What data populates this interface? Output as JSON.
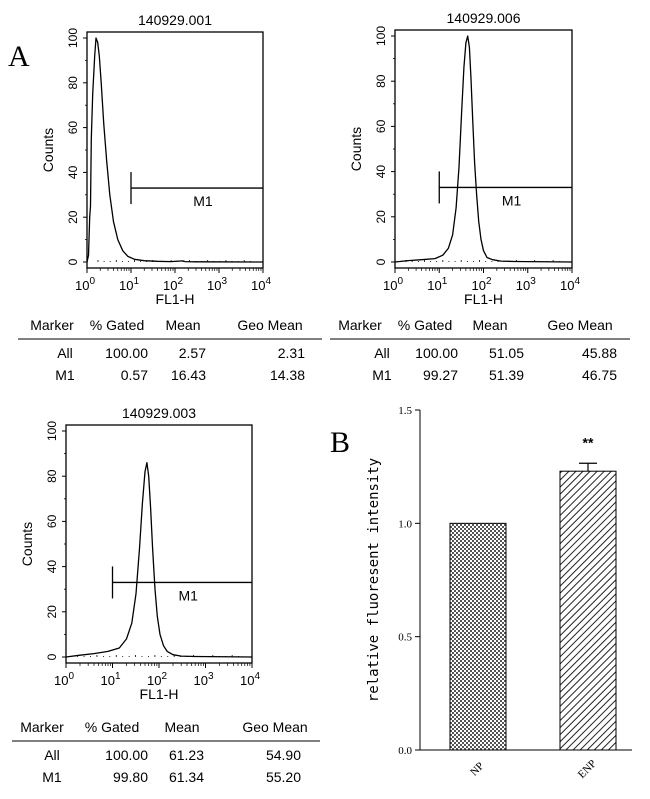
{
  "panel_labels": {
    "a": "A",
    "b": "B"
  },
  "chart_data": [
    {
      "type": "histogram",
      "title": "140929.001",
      "xlabel": "FL1-H",
      "ylabel": "Counts",
      "xscale": "log",
      "xlim": [
        1,
        10000
      ],
      "ylim": [
        0,
        100
      ],
      "xticks": [
        {
          "base": "10",
          "exp": "0"
        },
        {
          "base": "10",
          "exp": "1"
        },
        {
          "base": "10",
          "exp": "2"
        },
        {
          "base": "10",
          "exp": "3"
        },
        {
          "base": "10",
          "exp": "4"
        }
      ],
      "yticks": [
        "0",
        "20",
        "40",
        "60",
        "80",
        "100"
      ],
      "marker": {
        "label": "M1",
        "start": 10,
        "end": 10000,
        "level": 33
      },
      "histogram": [
        [
          1,
          0
        ],
        [
          1.08,
          3
        ],
        [
          1.15,
          20
        ],
        [
          1.2,
          25
        ],
        [
          1.25,
          55
        ],
        [
          1.35,
          75
        ],
        [
          1.5,
          92
        ],
        [
          1.6,
          100
        ],
        [
          1.75,
          98
        ],
        [
          1.9,
          92
        ],
        [
          2.1,
          80
        ],
        [
          2.4,
          62
        ],
        [
          2.8,
          45
        ],
        [
          3.3,
          30
        ],
        [
          4,
          18
        ],
        [
          5,
          10
        ],
        [
          6.5,
          5
        ],
        [
          8.5,
          2.5
        ],
        [
          12,
          1.2
        ],
        [
          20,
          0.6
        ],
        [
          40,
          0.3
        ],
        [
          80,
          0.2
        ],
        [
          150,
          0.5
        ],
        [
          170,
          0.2
        ],
        [
          300,
          0.1
        ],
        [
          10000,
          0
        ]
      ],
      "stats": {
        "headers": [
          "Marker",
          "% Gated",
          "Mean",
          "Geo Mean"
        ],
        "rows": [
          [
            "All",
            "100.00",
            "2.57",
            "2.31"
          ],
          [
            "M1",
            "0.57",
            "16.43",
            "14.38"
          ]
        ]
      }
    },
    {
      "type": "histogram",
      "title": "140929.006",
      "xlabel": "FL1-H",
      "ylabel": "Counts",
      "xscale": "log",
      "xlim": [
        1,
        10000
      ],
      "ylim": [
        0,
        100
      ],
      "xticks": [
        {
          "base": "10",
          "exp": "0"
        },
        {
          "base": "10",
          "exp": "1"
        },
        {
          "base": "10",
          "exp": "2"
        },
        {
          "base": "10",
          "exp": "3"
        },
        {
          "base": "10",
          "exp": "4"
        }
      ],
      "yticks": [
        "0",
        "20",
        "40",
        "60",
        "80",
        "100"
      ],
      "marker": {
        "label": "M1",
        "start": 10,
        "end": 10000,
        "level": 33
      },
      "histogram": [
        [
          1,
          0
        ],
        [
          2,
          0.6
        ],
        [
          4,
          1
        ],
        [
          8,
          1.5
        ],
        [
          12,
          3
        ],
        [
          16,
          6
        ],
        [
          20,
          12
        ],
        [
          24,
          24
        ],
        [
          28,
          42
        ],
        [
          32,
          66
        ],
        [
          36,
          86
        ],
        [
          40,
          97
        ],
        [
          44,
          100
        ],
        [
          48,
          95
        ],
        [
          52,
          82
        ],
        [
          57,
          63
        ],
        [
          63,
          44
        ],
        [
          70,
          30
        ],
        [
          78,
          18
        ],
        [
          88,
          10
        ],
        [
          100,
          5
        ],
        [
          120,
          2
        ],
        [
          160,
          1
        ],
        [
          250,
          0.4
        ],
        [
          500,
          0.2
        ],
        [
          10000,
          0
        ]
      ],
      "stats": {
        "headers": [
          "Marker",
          "% Gated",
          "Mean",
          "Geo Mean"
        ],
        "rows": [
          [
            "All",
            "100.00",
            "51.05",
            "45.88"
          ],
          [
            "M1",
            "99.27",
            "51.39",
            "46.75"
          ]
        ]
      }
    },
    {
      "type": "histogram",
      "title": "140929.003",
      "xlabel": "FL1-H",
      "ylabel": "Counts",
      "xscale": "log",
      "xlim": [
        1,
        10000
      ],
      "ylim": [
        0,
        100
      ],
      "xticks": [
        {
          "base": "10",
          "exp": "0"
        },
        {
          "base": "10",
          "exp": "1"
        },
        {
          "base": "10",
          "exp": "2"
        },
        {
          "base": "10",
          "exp": "3"
        },
        {
          "base": "10",
          "exp": "4"
        }
      ],
      "yticks": [
        "0",
        "20",
        "40",
        "60",
        "80",
        "100"
      ],
      "marker": {
        "label": "M1",
        "start": 10,
        "end": 10000,
        "level": 33
      },
      "histogram": [
        [
          1,
          0
        ],
        [
          2,
          0.8
        ],
        [
          4,
          1.5
        ],
        [
          8,
          2.5
        ],
        [
          14,
          4
        ],
        [
          20,
          8
        ],
        [
          26,
          15
        ],
        [
          32,
          28
        ],
        [
          38,
          48
        ],
        [
          44,
          68
        ],
        [
          50,
          82
        ],
        [
          55,
          86
        ],
        [
          60,
          80
        ],
        [
          66,
          66
        ],
        [
          73,
          48
        ],
        [
          82,
          30
        ],
        [
          92,
          18
        ],
        [
          105,
          10
        ],
        [
          125,
          5
        ],
        [
          150,
          2.5
        ],
        [
          200,
          1
        ],
        [
          300,
          0.4
        ],
        [
          600,
          0.2
        ],
        [
          10000,
          0
        ]
      ],
      "stats": {
        "headers": [
          "Marker",
          "% Gated",
          "Mean",
          "Geo Mean"
        ],
        "rows": [
          [
            "All",
            "100.00",
            "61.23",
            "54.90"
          ],
          [
            "M1",
            "99.80",
            "61.34",
            "55.20"
          ]
        ]
      }
    },
    {
      "type": "bar",
      "title": "",
      "xlabel": "",
      "ylabel": "relative fluoresent intensity",
      "categories": [
        "NP",
        "ENP"
      ],
      "values": [
        1.0,
        1.23
      ],
      "errors": [
        0,
        0.035
      ],
      "annotations": [
        "",
        "**"
      ],
      "ylim": [
        0,
        1.5
      ],
      "yticks": [
        "0.0",
        "0.5",
        "1.0",
        "1.5"
      ]
    }
  ]
}
